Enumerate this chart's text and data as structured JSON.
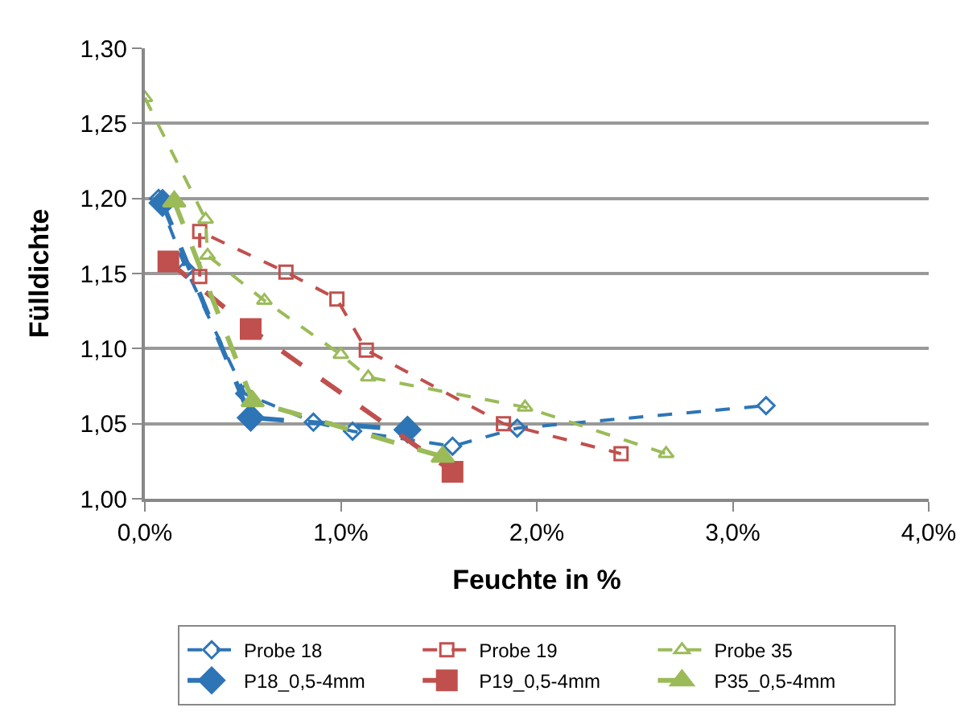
{
  "chart_data": {
    "type": "line",
    "xlabel": "Feuchte in %",
    "ylabel": "Fülldichte",
    "xlim": [
      0,
      4
    ],
    "xticks": [
      {
        "value": 0,
        "label": "0,0%"
      },
      {
        "value": 1,
        "label": "1,0%"
      },
      {
        "value": 2,
        "label": "2,0%"
      },
      {
        "value": 3,
        "label": "3,0%"
      },
      {
        "value": 4,
        "label": "4,0%"
      }
    ],
    "ylim": [
      1.0,
      1.3
    ],
    "yticks": [
      {
        "value": 1.0,
        "label": "1,00"
      },
      {
        "value": 1.05,
        "label": "1,05"
      },
      {
        "value": 1.1,
        "label": "1,10"
      },
      {
        "value": 1.15,
        "label": "1,15"
      },
      {
        "value": 1.2,
        "label": "1,20"
      },
      {
        "value": 1.25,
        "label": "1,25"
      },
      {
        "value": 1.3,
        "label": "1,30"
      }
    ],
    "grid": "y",
    "legend": "bottom",
    "line_style": "dashed",
    "series": [
      {
        "name": "Probe 18",
        "color": "#2e75b6",
        "marker": "diamond",
        "x": [
          0.07,
          0.21,
          0.51,
          0.86,
          1.06,
          1.57,
          1.9,
          3.17
        ],
        "values": [
          1.2,
          1.153,
          1.07,
          1.051,
          1.045,
          1.035,
          1.047,
          1.062
        ]
      },
      {
        "name": "Probe 19",
        "color": "#c0504d",
        "marker": "square",
        "x": [
          0.28,
          0.28,
          0.72,
          0.98,
          1.13,
          1.83,
          2.43
        ],
        "values": [
          1.148,
          1.178,
          1.151,
          1.133,
          1.099,
          1.05,
          1.03
        ]
      },
      {
        "name": "Probe 35",
        "color": "#9bbb59",
        "marker": "triangle",
        "x": [
          0.0,
          0.31,
          0.32,
          0.61,
          1.0,
          1.14,
          1.94,
          2.66
        ],
        "values": [
          1.267,
          1.186,
          1.162,
          1.132,
          1.096,
          1.081,
          1.061,
          1.03
        ]
      },
      {
        "name": "P18_0,5-4mm",
        "color": "#2e75b6",
        "marker": "diamond",
        "x": [
          0.09,
          0.54,
          1.34
        ],
        "values": [
          1.197,
          1.054,
          1.046
        ]
      },
      {
        "name": "P19_0,5-4mm",
        "color": "#c0504d",
        "marker": "square",
        "x": [
          0.12,
          0.54,
          1.57
        ],
        "values": [
          1.158,
          1.113,
          1.018
        ]
      },
      {
        "name": "P35_0,5-4mm",
        "color": "#9bbb59",
        "marker": "triangle",
        "x": [
          0.15,
          0.55,
          1.52
        ],
        "values": [
          1.198,
          1.065,
          1.028
        ]
      }
    ]
  }
}
